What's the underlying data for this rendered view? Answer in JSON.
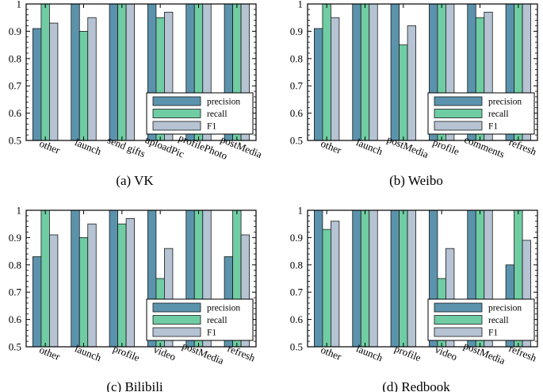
{
  "figure": {
    "series_names": [
      "precision",
      "recall",
      "F1"
    ],
    "series_colors": [
      "#5b93ad",
      "#6fcca3",
      "#b5c3d3"
    ],
    "ytick_labels": [
      "0.5",
      "0.6",
      "0.7",
      "0.8",
      "0.9",
      "1"
    ]
  },
  "chart_data": [
    {
      "type": "bar",
      "caption": "(a) VK",
      "categories": [
        "other",
        "launch",
        "send gifts",
        "uploadPic",
        "profilePhoto",
        "postMedia"
      ],
      "series": [
        {
          "name": "precision",
          "values": [
            0.91,
            1.0,
            1.0,
            1.0,
            1.0,
            1.0
          ]
        },
        {
          "name": "recall",
          "values": [
            1.0,
            0.9,
            1.0,
            0.95,
            1.0,
            1.0
          ]
        },
        {
          "name": "F1",
          "values": [
            0.93,
            0.95,
            1.0,
            0.97,
            1.0,
            1.0
          ]
        }
      ],
      "ylim": [
        0.5,
        1.0
      ],
      "legend": "bottom-right"
    },
    {
      "type": "bar",
      "caption": "(b) Weibo",
      "categories": [
        "other",
        "launch",
        "postMedia",
        "profile",
        "comments",
        "refresh"
      ],
      "series": [
        {
          "name": "precision",
          "values": [
            0.91,
            1.0,
            1.0,
            1.0,
            1.0,
            1.0
          ]
        },
        {
          "name": "recall",
          "values": [
            1.0,
            1.0,
            0.85,
            1.0,
            0.95,
            1.0
          ]
        },
        {
          "name": "F1",
          "values": [
            0.95,
            1.0,
            0.92,
            1.0,
            0.97,
            1.0
          ]
        }
      ],
      "ylim": [
        0.5,
        1.0
      ],
      "legend": "bottom-right"
    },
    {
      "type": "bar",
      "caption": "(c) Bilibili",
      "categories": [
        "other",
        "launch",
        "profile",
        "video",
        "postMedia",
        "refresh"
      ],
      "series": [
        {
          "name": "precision",
          "values": [
            0.83,
            1.0,
            1.0,
            1.0,
            1.0,
            0.83
          ]
        },
        {
          "name": "recall",
          "values": [
            1.0,
            0.9,
            0.95,
            0.75,
            1.0,
            1.0
          ]
        },
        {
          "name": "F1",
          "values": [
            0.91,
            0.95,
            0.97,
            0.86,
            1.0,
            0.91
          ]
        }
      ],
      "ylim": [
        0.5,
        1.0
      ],
      "legend": "bottom-right"
    },
    {
      "type": "bar",
      "caption": "(d) Redbook",
      "categories": [
        "other",
        "launch",
        "profile",
        "video",
        "postMedia",
        "refresh"
      ],
      "series": [
        {
          "name": "precision",
          "values": [
            1.0,
            1.0,
            1.0,
            1.0,
            1.0,
            0.8
          ]
        },
        {
          "name": "recall",
          "values": [
            0.93,
            1.0,
            1.0,
            0.75,
            1.0,
            1.0
          ]
        },
        {
          "name": "F1",
          "values": [
            0.96,
            1.0,
            1.0,
            0.86,
            1.0,
            0.89
          ]
        }
      ],
      "ylim": [
        0.5,
        1.0
      ],
      "legend": "bottom-right"
    }
  ]
}
